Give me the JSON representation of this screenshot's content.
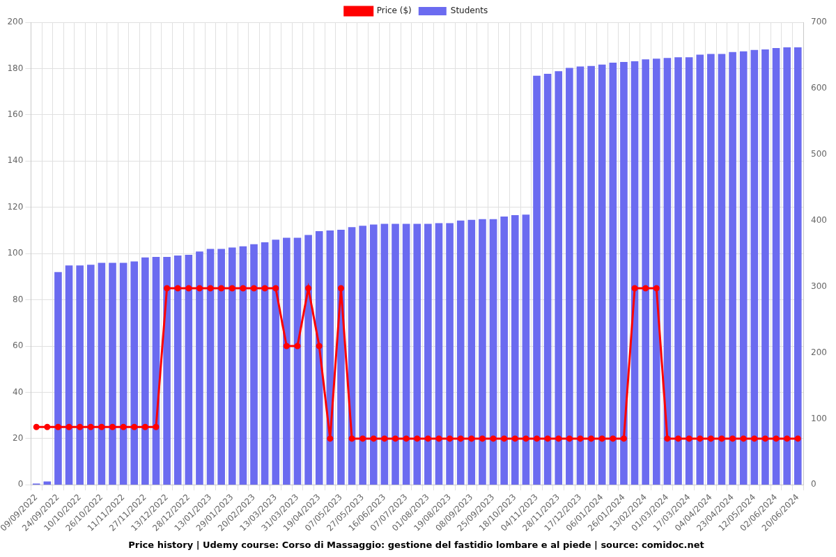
{
  "chart_data": {
    "type": "bar",
    "title": "Price history | Udemy course: Corso di Massaggio: gestione del fastidio lombare e al piede | source: comidoc.net",
    "categories": [
      "09/09/2022",
      null,
      "24/09/2022",
      null,
      "10/10/2022",
      null,
      "26/10/2022",
      null,
      "11/11/2022",
      null,
      "27/11/2022",
      null,
      "13/12/2022",
      null,
      "28/12/2022",
      null,
      "13/01/2023",
      null,
      "29/01/2023",
      null,
      "20/02/2023",
      null,
      "13/03/2023",
      null,
      "31/03/2023",
      null,
      "19/04/2023",
      null,
      "07/05/2023",
      null,
      "27/05/2023",
      null,
      "16/06/2023",
      null,
      "07/07/2023",
      null,
      "01/08/2023",
      null,
      "19/08/2023",
      null,
      "08/09/2023",
      null,
      "25/09/2023",
      null,
      "18/10/2023",
      null,
      "04/11/2023",
      null,
      "28/11/2023",
      null,
      "17/12/2023",
      null,
      "06/01/2024",
      null,
      "26/01/2024",
      null,
      "13/02/2024",
      null,
      "01/03/2024",
      null,
      "17/03/2024",
      null,
      "04/04/2024",
      null,
      "23/04/2024",
      null,
      "12/05/2024",
      null,
      "02/06/2024",
      null,
      "20/06/2024"
    ],
    "series": [
      {
        "name": "Price ($)",
        "type": "line",
        "color": "#ff0000",
        "marker": "circle",
        "values": [
          25,
          25,
          25,
          25,
          25,
          25,
          25,
          25,
          25,
          25,
          25,
          25,
          85,
          85,
          85,
          85,
          85,
          85,
          85,
          85,
          85,
          85,
          85,
          60,
          60,
          85,
          60,
          20,
          85,
          20,
          20,
          20,
          20,
          20,
          20,
          20,
          20,
          20,
          20,
          20,
          20,
          20,
          20,
          20,
          20,
          20,
          20,
          20,
          20,
          20,
          20,
          20,
          20,
          20,
          20,
          85,
          85,
          85,
          20,
          20,
          20,
          20,
          20,
          20,
          20,
          20,
          20,
          20,
          20,
          20,
          20
        ]
      },
      {
        "name": "Students",
        "type": "bar",
        "color": "#6b6bf0",
        "axis": "y2",
        "values": [
          2,
          5,
          322,
          332,
          332,
          333,
          336,
          336,
          336,
          338,
          344,
          345,
          345,
          347,
          348,
          353,
          357,
          357,
          359,
          361,
          364,
          367,
          371,
          374,
          374,
          378,
          384,
          385,
          386,
          390,
          392,
          394,
          395,
          395,
          395,
          395,
          395,
          396,
          396,
          400,
          401,
          402,
          402,
          406,
          408,
          409,
          619,
          622,
          626,
          631,
          633,
          634,
          636,
          639,
          640,
          641,
          644,
          645,
          646,
          647,
          647,
          651,
          652,
          652,
          655,
          656,
          658,
          659,
          661,
          662,
          662
        ]
      }
    ],
    "ylim": [
      0,
      200
    ],
    "yticks": [
      0,
      20,
      40,
      60,
      80,
      100,
      120,
      140,
      160,
      180,
      200
    ],
    "y2lim": [
      0,
      700
    ],
    "y2ticks": [
      0,
      100,
      200,
      300,
      400,
      500,
      600,
      700
    ],
    "grid": true,
    "legend": "top"
  }
}
